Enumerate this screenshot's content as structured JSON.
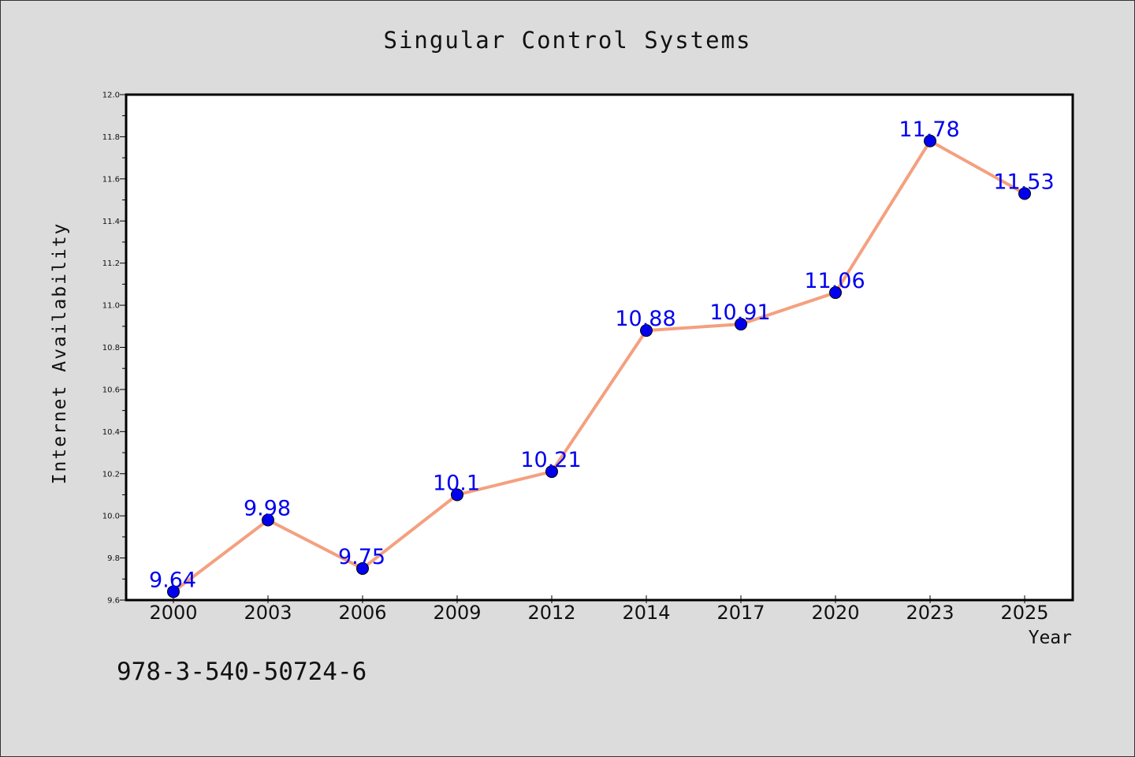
{
  "chart_data": {
    "type": "line",
    "title": "Singular Control Systems",
    "xlabel": "Year",
    "ylabel": "Internet Availability",
    "categories": [
      "2000",
      "2003",
      "2006",
      "2009",
      "2012",
      "2014",
      "2017",
      "2020",
      "2023",
      "2025"
    ],
    "series": [
      {
        "values": [
          9.64,
          9.98,
          9.75,
          10.1,
          10.21,
          10.88,
          10.91,
          11.06,
          11.78,
          11.53
        ],
        "labels": [
          "9.64",
          "9.98",
          "9.75",
          "10.1",
          "10.21",
          "10.88",
          "10.91",
          "11.06",
          "11.78",
          "11.53"
        ],
        "line_color": "#f4a07f",
        "marker_color": "#0000ee",
        "label_color": "#0000ee"
      }
    ],
    "ylim": [
      9.6,
      12.0
    ],
    "yticks": [
      "9.6",
      "9.8",
      "10.0",
      "10.2",
      "10.4",
      "10.6",
      "10.8",
      "11.0",
      "11.2",
      "11.4",
      "11.6",
      "11.8",
      "12.0"
    ],
    "grid": false,
    "legend": "none"
  },
  "footer": {
    "code": "978-3-540-50724-6"
  },
  "colors": {
    "background": "#dcdcdc",
    "plot_background": "#ffffff",
    "axis": "#000000"
  }
}
